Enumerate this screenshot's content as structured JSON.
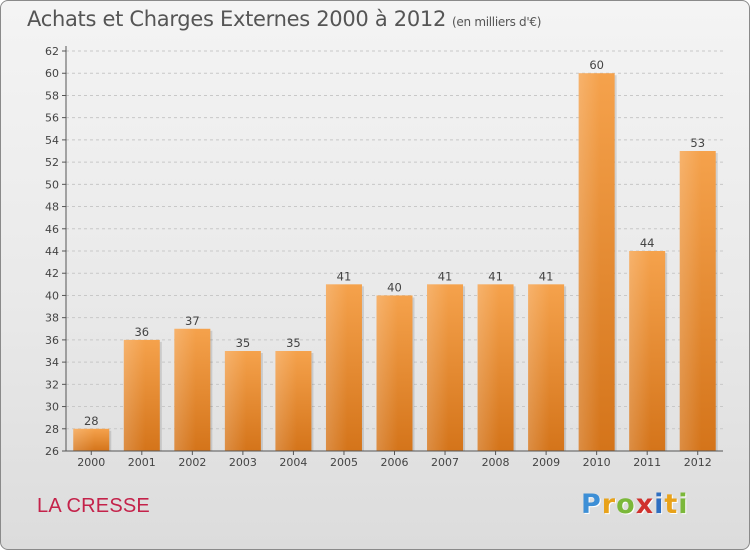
{
  "header": {
    "title": "Achats et Charges Externes 2000 à 2012",
    "subtitle": "(en milliers d'€)"
  },
  "footer": {
    "place": "LA CRESSE",
    "logo_letters": [
      "P",
      "r",
      "o",
      "x",
      "i",
      "t",
      "i"
    ],
    "logo_colors": [
      "#3d8fd6",
      "#e8a21a",
      "#7bb83a",
      "#d0312d",
      "#2f6fc1",
      "#e8a21a",
      "#7bb83a"
    ]
  },
  "colors": {
    "bar_light": "#f5a24c",
    "bar_dark": "#d4741a",
    "axis": "#555555",
    "grid": "#c8c8c8"
  },
  "chart_data": {
    "type": "bar",
    "title": "Achats et Charges Externes 2000 à 2012",
    "subtitle": "(en milliers d'€)",
    "categories": [
      "2000",
      "2001",
      "2002",
      "2003",
      "2004",
      "2005",
      "2006",
      "2007",
      "2008",
      "2009",
      "2010",
      "2011",
      "2012"
    ],
    "values": [
      28,
      36,
      37,
      35,
      35,
      41,
      40,
      41,
      41,
      41,
      60,
      44,
      53
    ],
    "ylim": [
      26,
      62
    ],
    "ytick_step": 2,
    "grid": true
  }
}
